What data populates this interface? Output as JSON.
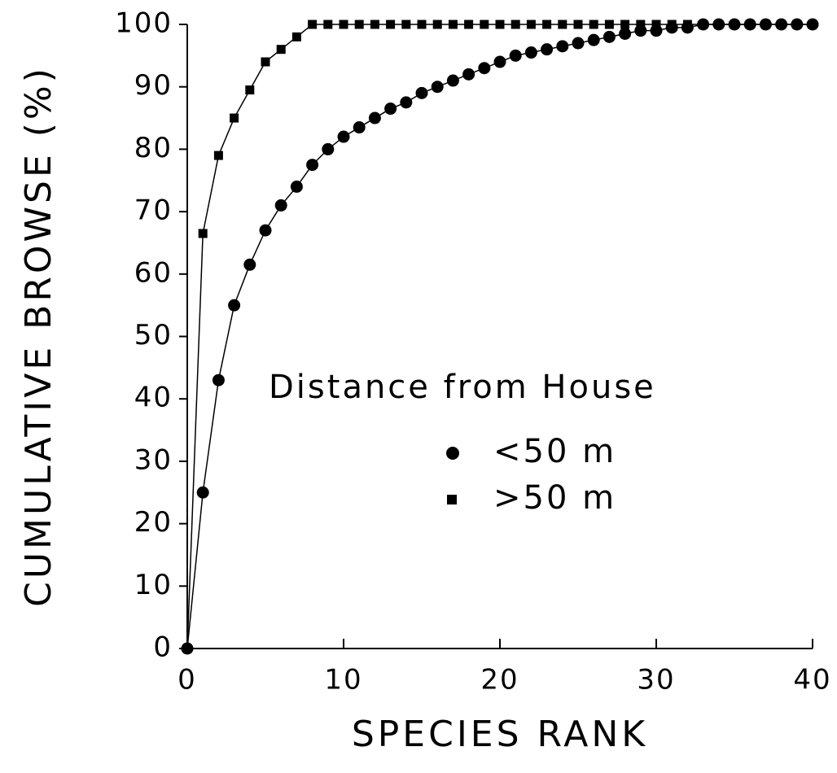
{
  "chart_data": {
    "type": "line",
    "xlabel": "SPECIES RANK",
    "ylabel": "CUMULATIVE BROWSE (%)",
    "legend_title": "Distance from House",
    "xlim": [
      0,
      40
    ],
    "xticks": [
      0,
      10,
      20,
      30,
      40
    ],
    "ylim": [
      0,
      100
    ],
    "yticks": [
      0,
      10,
      20,
      30,
      40,
      50,
      60,
      70,
      80,
      90,
      100
    ],
    "series": [
      {
        "name": "<50 m",
        "color": "#000000",
        "marker": "circle",
        "x": [
          0,
          1,
          2,
          3,
          4,
          5,
          6,
          7,
          8,
          9,
          10,
          11,
          12,
          13,
          14,
          15,
          16,
          17,
          18,
          19,
          20,
          21,
          22,
          23,
          24,
          25,
          26,
          27,
          28,
          29,
          30,
          31,
          32,
          33,
          34,
          35,
          36,
          37,
          38,
          39,
          40
        ],
        "values": [
          0,
          25,
          43,
          55,
          61.5,
          67,
          71,
          74,
          77.5,
          80,
          82,
          83.5,
          85,
          86.5,
          87.5,
          89,
          90,
          91,
          92,
          93,
          94,
          95,
          95.5,
          96,
          96.5,
          97,
          97.5,
          98,
          98.5,
          99,
          99,
          99.5,
          99.5,
          100,
          100,
          100,
          100,
          100,
          100,
          100,
          100
        ]
      },
      {
        "name": ">50 m",
        "color": "#000000",
        "marker": "square",
        "x": [
          0,
          1,
          2,
          3,
          4,
          5,
          6,
          7,
          8,
          9,
          10,
          11,
          12,
          13,
          14,
          15,
          16,
          17,
          18,
          19,
          20,
          21,
          22,
          23,
          24,
          25,
          26,
          27,
          28,
          29,
          30,
          31,
          32,
          33,
          34,
          35,
          36,
          37,
          38,
          39,
          40
        ],
        "values": [
          0,
          66.5,
          79,
          85,
          89.5,
          94,
          96,
          98,
          100,
          100,
          100,
          100,
          100,
          100,
          100,
          100,
          100,
          100,
          100,
          100,
          100,
          100,
          100,
          100,
          100,
          100,
          100,
          100,
          100,
          100,
          100,
          100,
          100,
          100,
          100,
          100,
          100,
          100,
          100,
          100,
          100
        ]
      }
    ]
  }
}
